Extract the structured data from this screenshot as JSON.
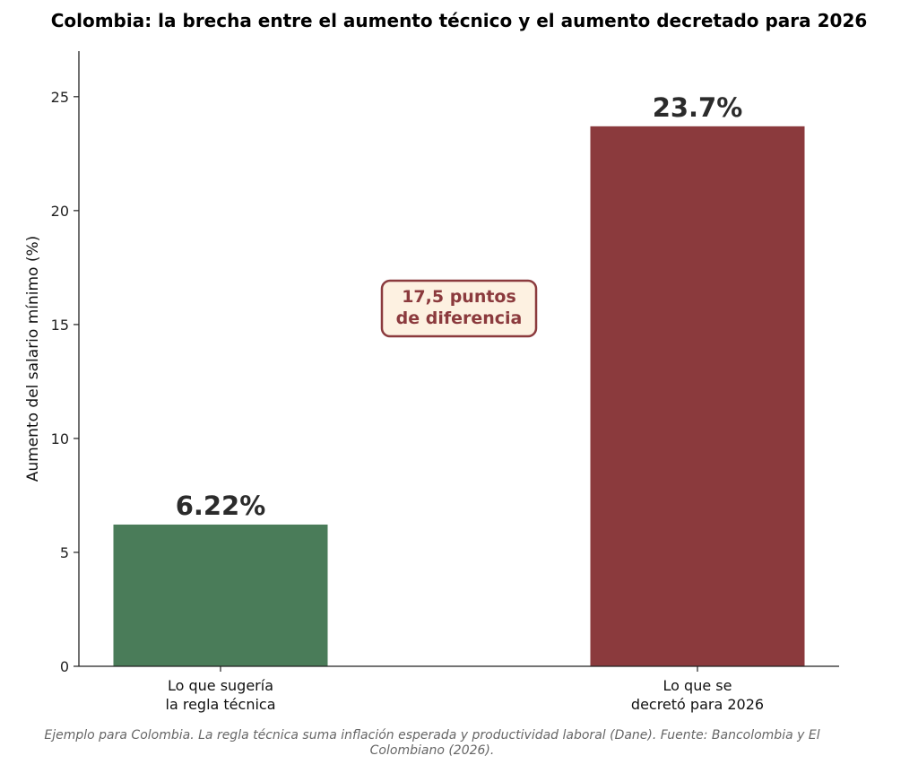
{
  "chart_data": {
    "type": "bar",
    "title": "Colombia: la brecha entre el aumento técnico y el aumento decretado para 2026",
    "xlabel": "",
    "ylabel": "Aumento del salario mínimo (%)",
    "ylim": [
      0,
      27
    ],
    "yticks": [
      0,
      5,
      10,
      15,
      20,
      25
    ],
    "grid": false,
    "categories": [
      [
        "Lo que sugería",
        "la regla técnica"
      ],
      [
        "Lo que se",
        "decretó para 2026"
      ]
    ],
    "values": [
      6.22,
      23.7
    ],
    "data_labels": [
      "6.22%",
      "23.7%"
    ],
    "colors": [
      "#4a7c59",
      "#8b3a3d"
    ],
    "annotation": {
      "lines": [
        "17,5 puntos",
        "de diferencia"
      ],
      "text_color": "#8b3a3d",
      "box_fill": "#fdf1e1",
      "box_border": "#8b3a3d"
    },
    "footnote": [
      "Ejemplo para Colombia. La regla técnica suma inflación esperada y productividad laboral (Dane). Fuente: Bancolombia y El",
      "Colombiano (2026)."
    ]
  }
}
